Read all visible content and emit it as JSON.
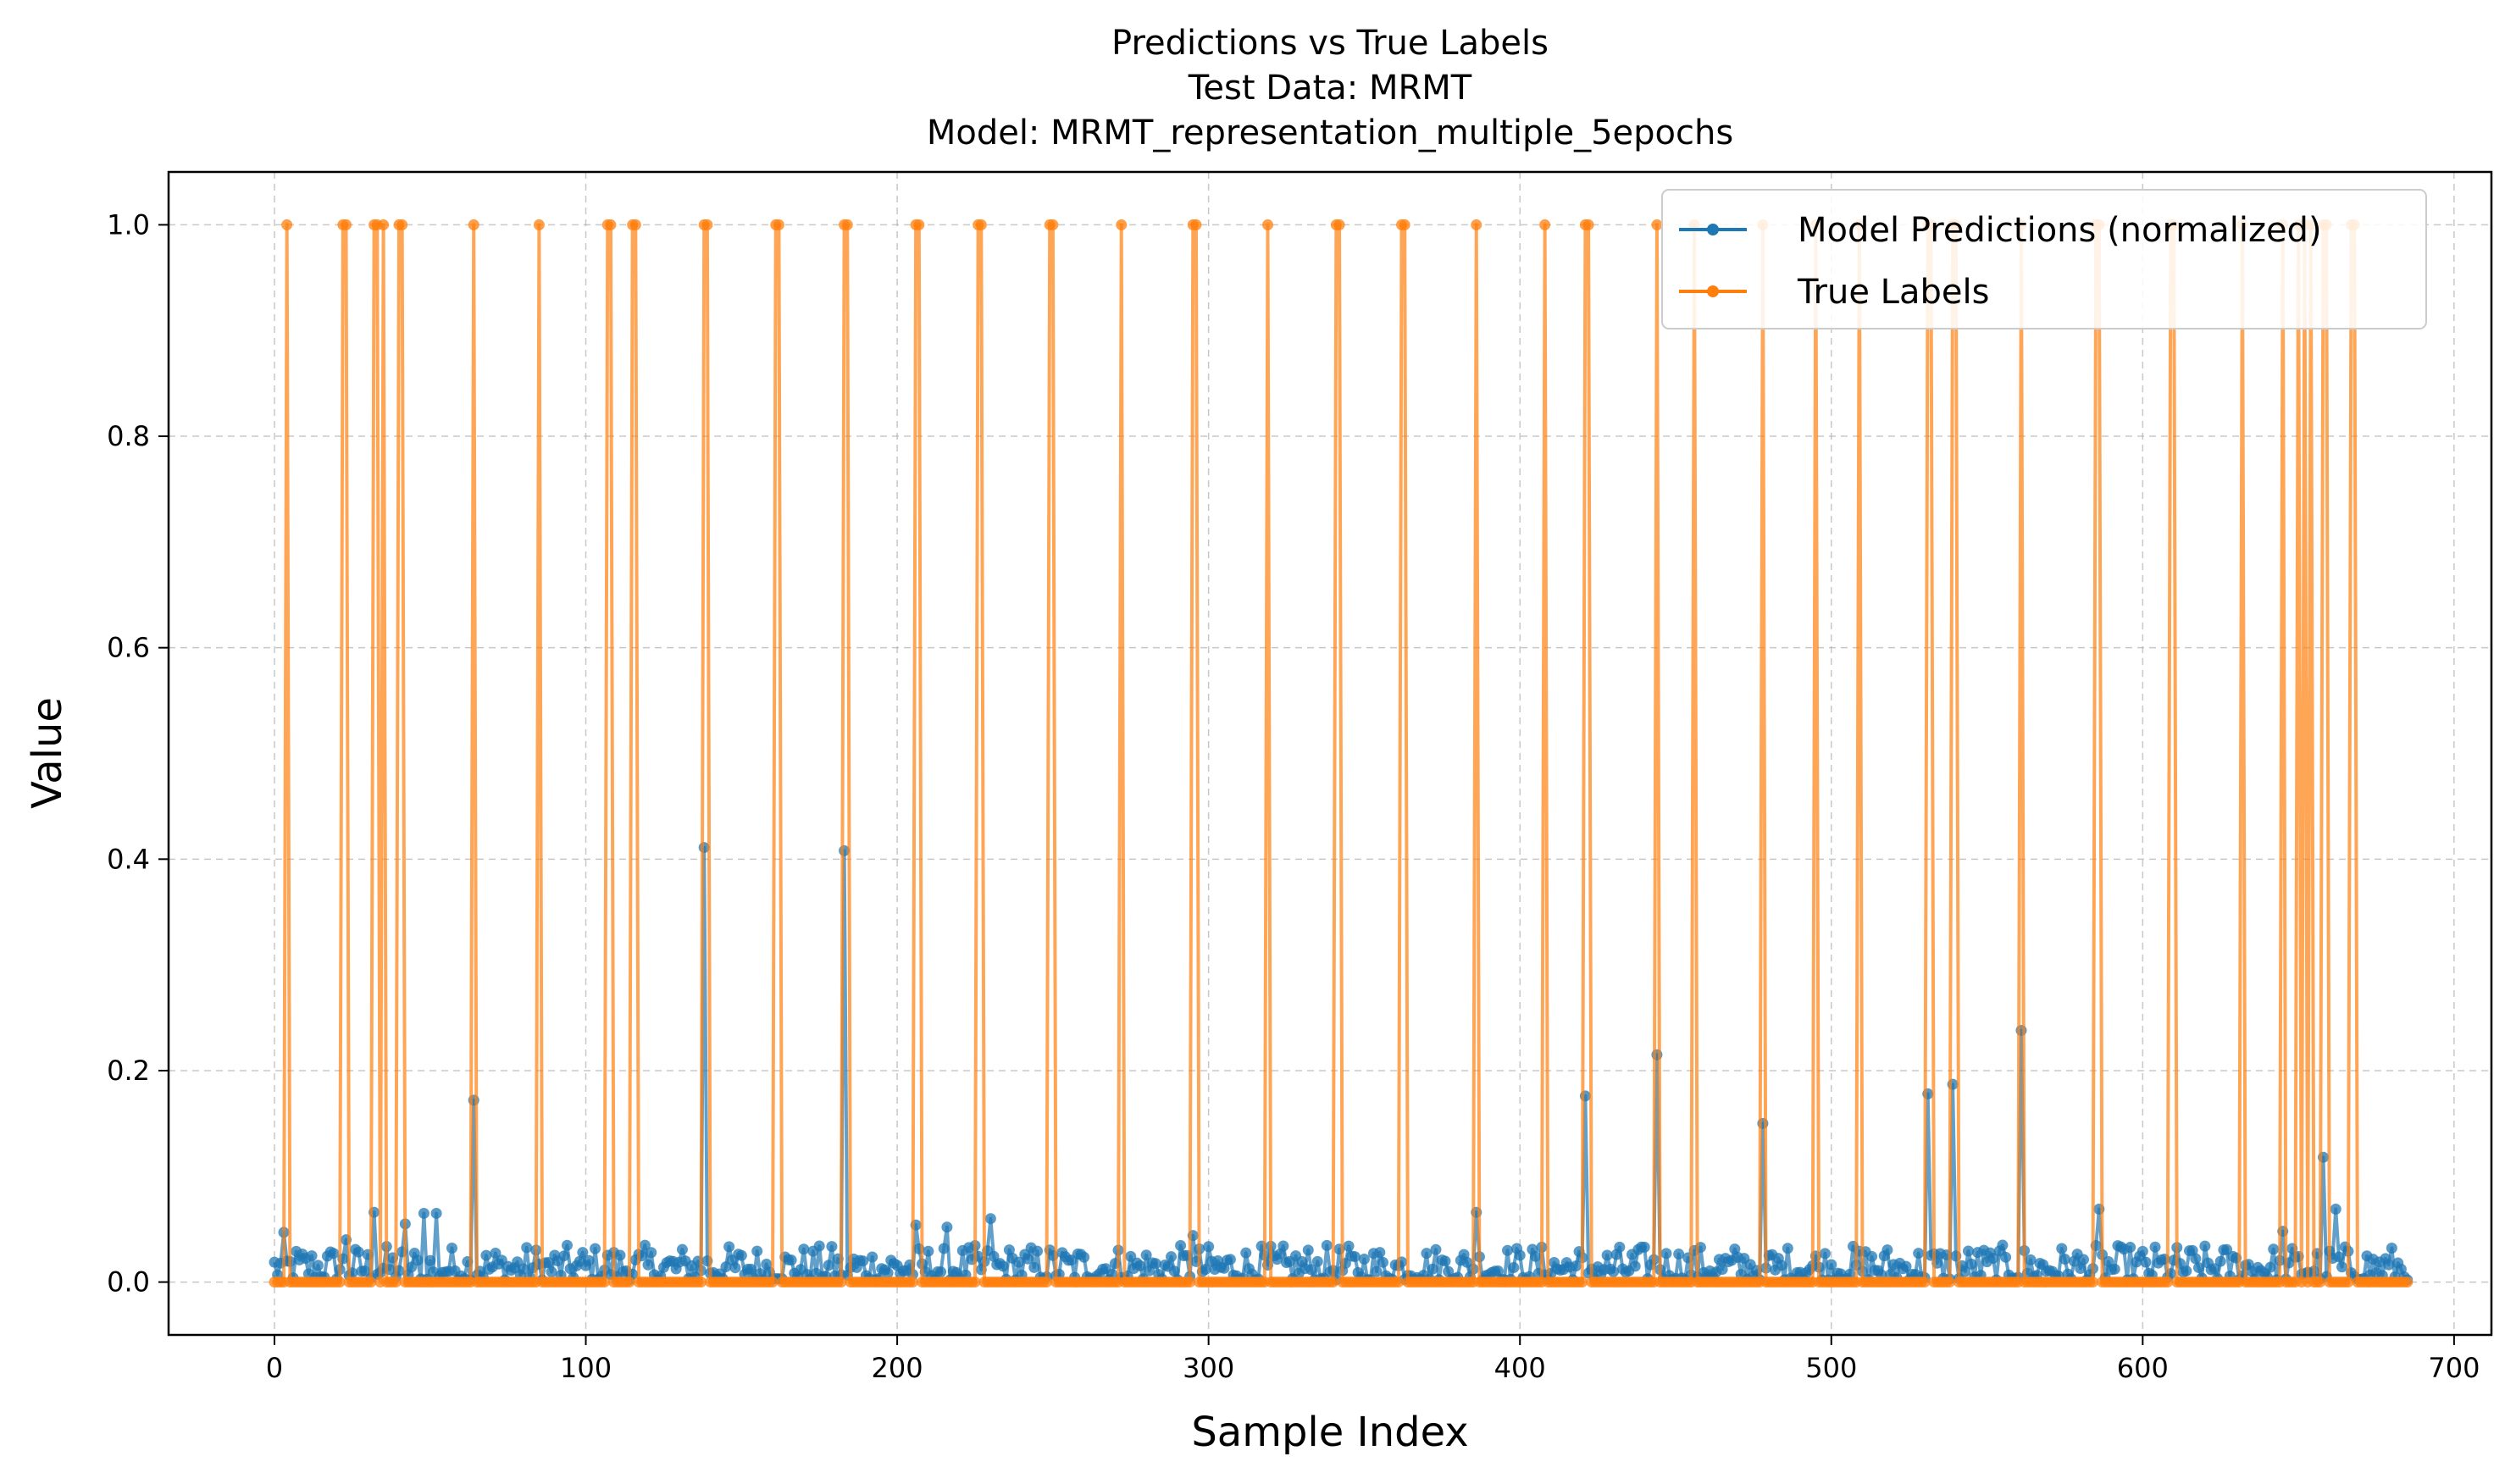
{
  "chart_data": {
    "type": "line",
    "title": [
      "Predictions vs True Labels",
      "Test Data: MRMT",
      "Model: MRMT_representation_multiple_5epochs"
    ],
    "xlabel": "Sample Index",
    "ylabel": "Value",
    "xlim": [
      -34,
      712
    ],
    "ylim": [
      -0.05,
      1.05
    ],
    "xticks": [
      0,
      100,
      200,
      300,
      400,
      500,
      600,
      700
    ],
    "yticks": [
      0.0,
      0.2,
      0.4,
      0.6,
      0.8,
      1.0
    ],
    "xtick_labels": [
      "0",
      "100",
      "200",
      "300",
      "400",
      "500",
      "600",
      "700"
    ],
    "ytick_labels": [
      "0.0",
      "0.2",
      "0.4",
      "0.6",
      "0.8",
      "1.0"
    ],
    "grid": true,
    "legend_position": "top-right",
    "n_samples": 686,
    "series": [
      {
        "name": "Model Predictions (normalized)",
        "color": "#1f77b4",
        "baseline_range": [
          0.002,
          0.035
        ],
        "peaks": [
          {
            "x": 3,
            "y": 0.047
          },
          {
            "x": 23,
            "y": 0.04
          },
          {
            "x": 32,
            "y": 0.066
          },
          {
            "x": 42,
            "y": 0.055
          },
          {
            "x": 48,
            "y": 0.065
          },
          {
            "x": 52,
            "y": 0.065
          },
          {
            "x": 64,
            "y": 0.172
          },
          {
            "x": 138,
            "y": 0.411
          },
          {
            "x": 183,
            "y": 0.408
          },
          {
            "x": 206,
            "y": 0.054
          },
          {
            "x": 216,
            "y": 0.052
          },
          {
            "x": 230,
            "y": 0.06
          },
          {
            "x": 295,
            "y": 0.044
          },
          {
            "x": 386,
            "y": 0.066
          },
          {
            "x": 421,
            "y": 0.176
          },
          {
            "x": 444,
            "y": 0.215
          },
          {
            "x": 478,
            "y": 0.15
          },
          {
            "x": 531,
            "y": 0.178
          },
          {
            "x": 539,
            "y": 0.187
          },
          {
            "x": 561,
            "y": 0.238
          },
          {
            "x": 586,
            "y": 0.069
          },
          {
            "x": 645,
            "y": 0.048
          },
          {
            "x": 658,
            "y": 0.118
          },
          {
            "x": 662,
            "y": 0.069
          }
        ]
      },
      {
        "name": "True Labels",
        "color": "#ff7f0e",
        "positive_indices": [
          4,
          22,
          23,
          32,
          33,
          35,
          40,
          41,
          64,
          85,
          107,
          108,
          115,
          116,
          138,
          139,
          161,
          162,
          183,
          184,
          206,
          207,
          226,
          227,
          249,
          250,
          272,
          295,
          296,
          319,
          341,
          342,
          362,
          363,
          386,
          408,
          421,
          422,
          444,
          456,
          478,
          495,
          509,
          531,
          532,
          539,
          540,
          561,
          585,
          586,
          609,
          610,
          632,
          645,
          650,
          652,
          654,
          658,
          659,
          667,
          668
        ],
        "other_values": 0
      }
    ]
  }
}
